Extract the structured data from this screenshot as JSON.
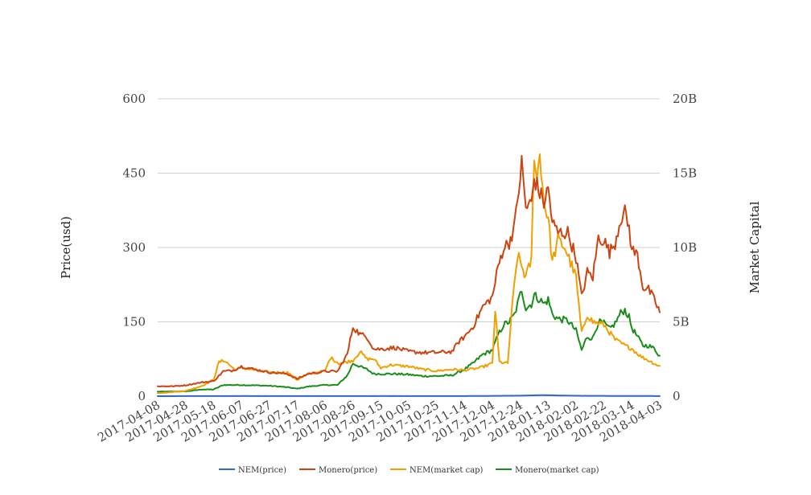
{
  "chart_data": {
    "type": "line",
    "title": "",
    "xlabel": "",
    "ylabel": "Price(usd)",
    "y2label": "Market Capital",
    "x_start": "2017-04-08",
    "x_end": "2018-04-03",
    "x_ticks": [
      "2017-04-08",
      "2017-04-28",
      "2017-05-18",
      "2017-06-07",
      "2017-06-27",
      "2017-07-17",
      "2017-08-06",
      "2017-08-26",
      "2017-09-15",
      "2017-10-05",
      "2017-10-25",
      "2017-11-14",
      "2017-12-04",
      "2017-12-24",
      "2018-01-13",
      "2018-02-02",
      "2018-02-22",
      "2018-03-14",
      "2018-04-03"
    ],
    "ylim": [
      0,
      600
    ],
    "y_ticks": [
      0,
      150,
      300,
      450,
      600
    ],
    "y_tick_labels": [
      "0",
      "150",
      "300",
      "450",
      "600"
    ],
    "y2lim": [
      0,
      20000000000
    ],
    "y2_ticks": [
      0,
      5000000000,
      10000000000,
      15000000000,
      20000000000
    ],
    "y2_tick_labels": [
      "0",
      "5B",
      "10B",
      "15B",
      "20B"
    ],
    "grid": true,
    "legend_position": "bottom",
    "series": [
      {
        "name": "NEM(price)",
        "axis": "left",
        "color": "#3366cc",
        "points": [
          [
            "2017-04-08",
            0.02
          ],
          [
            "2017-05-18",
            0.2
          ],
          [
            "2017-06-07",
            0.25
          ],
          [
            "2017-08-06",
            0.2
          ],
          [
            "2017-09-15",
            0.25
          ],
          [
            "2017-11-14",
            0.2
          ],
          [
            "2017-12-24",
            1.0
          ],
          [
            "2018-01-07",
            2.0
          ],
          [
            "2018-01-13",
            1.8
          ],
          [
            "2018-02-02",
            0.8
          ],
          [
            "2018-03-14",
            0.35
          ],
          [
            "2018-04-03",
            0.22
          ]
        ]
      },
      {
        "name": "Monero(price)",
        "axis": "left",
        "color": "#cc4411",
        "points": [
          [
            "2017-04-08",
            20
          ],
          [
            "2017-04-20",
            20
          ],
          [
            "2017-04-28",
            22
          ],
          [
            "2017-05-10",
            28
          ],
          [
            "2017-05-18",
            30
          ],
          [
            "2017-05-25",
            50
          ],
          [
            "2017-06-01",
            52
          ],
          [
            "2017-06-07",
            60
          ],
          [
            "2017-06-15",
            55
          ],
          [
            "2017-06-27",
            48
          ],
          [
            "2017-07-10",
            45
          ],
          [
            "2017-07-17",
            35
          ],
          [
            "2017-07-25",
            45
          ],
          [
            "2017-08-06",
            50
          ],
          [
            "2017-08-15",
            50
          ],
          [
            "2017-08-22",
            85
          ],
          [
            "2017-08-26",
            140
          ],
          [
            "2017-08-31",
            125
          ],
          [
            "2017-09-05",
            120
          ],
          [
            "2017-09-10",
            95
          ],
          [
            "2017-09-15",
            95
          ],
          [
            "2017-09-25",
            98
          ],
          [
            "2017-10-05",
            90
          ],
          [
            "2017-10-15",
            88
          ],
          [
            "2017-10-25",
            88
          ],
          [
            "2017-11-05",
            90
          ],
          [
            "2017-11-10",
            110
          ],
          [
            "2017-11-14",
            120
          ],
          [
            "2017-11-20",
            140
          ],
          [
            "2017-11-27",
            180
          ],
          [
            "2017-12-04",
            200
          ],
          [
            "2017-12-08",
            260
          ],
          [
            "2017-12-12",
            300
          ],
          [
            "2017-12-16",
            310
          ],
          [
            "2017-12-20",
            345
          ],
          [
            "2017-12-23",
            420
          ],
          [
            "2017-12-25",
            470
          ],
          [
            "2017-12-28",
            380
          ],
          [
            "2018-01-01",
            390
          ],
          [
            "2018-01-03",
            440
          ],
          [
            "2018-01-07",
            410
          ],
          [
            "2018-01-10",
            390
          ],
          [
            "2018-01-13",
            420
          ],
          [
            "2018-01-16",
            350
          ],
          [
            "2018-01-20",
            330
          ],
          [
            "2018-01-27",
            330
          ],
          [
            "2018-02-02",
            280
          ],
          [
            "2018-02-06",
            200
          ],
          [
            "2018-02-10",
            250
          ],
          [
            "2018-02-14",
            240
          ],
          [
            "2018-02-18",
            320
          ],
          [
            "2018-02-22",
            315
          ],
          [
            "2018-02-26",
            290
          ],
          [
            "2018-03-02",
            310
          ],
          [
            "2018-03-06",
            360
          ],
          [
            "2018-03-09",
            370
          ],
          [
            "2018-03-12",
            340
          ],
          [
            "2018-03-14",
            295
          ],
          [
            "2018-03-18",
            285
          ],
          [
            "2018-03-22",
            220
          ],
          [
            "2018-03-26",
            215
          ],
          [
            "2018-03-30",
            195
          ],
          [
            "2018-04-03",
            170
          ]
        ]
      },
      {
        "name": "NEM(market cap)",
        "axis": "right",
        "color": "#f0a000",
        "points": [
          [
            "2017-04-08",
            200000000.0
          ],
          [
            "2017-04-28",
            350000000.0
          ],
          [
            "2017-05-10",
            700000000.0
          ],
          [
            "2017-05-18",
            1100000000.0
          ],
          [
            "2017-05-22",
            2300000000.0
          ],
          [
            "2017-05-26",
            2400000000.0
          ],
          [
            "2017-06-02",
            1800000000.0
          ],
          [
            "2017-06-07",
            1900000000.0
          ],
          [
            "2017-06-27",
            1600000000.0
          ],
          [
            "2017-07-10",
            1600000000.0
          ],
          [
            "2017-07-17",
            1100000000.0
          ],
          [
            "2017-07-25",
            1500000000.0
          ],
          [
            "2017-08-06",
            1700000000.0
          ],
          [
            "2017-08-10",
            2600000000.0
          ],
          [
            "2017-08-16",
            2200000000.0
          ],
          [
            "2017-08-26",
            2400000000.0
          ],
          [
            "2017-08-31",
            3000000000.0
          ],
          [
            "2017-09-05",
            2500000000.0
          ],
          [
            "2017-09-10",
            2500000000.0
          ],
          [
            "2017-09-15",
            1900000000.0
          ],
          [
            "2017-09-22",
            2100000000.0
          ],
          [
            "2017-10-05",
            2000000000.0
          ],
          [
            "2017-10-15",
            1800000000.0
          ],
          [
            "2017-10-25",
            1700000000.0
          ],
          [
            "2017-11-05",
            1800000000.0
          ],
          [
            "2017-11-14",
            1750000000.0
          ],
          [
            "2017-11-25",
            1900000000.0
          ],
          [
            "2017-12-04",
            2200000000.0
          ],
          [
            "2017-12-06",
            5800000000.0
          ],
          [
            "2017-12-09",
            2300000000.0
          ],
          [
            "2017-12-15",
            2200000000.0
          ],
          [
            "2017-12-18",
            5800000000.0
          ],
          [
            "2017-12-22",
            9500000000.0
          ],
          [
            "2017-12-28",
            8000000000.0
          ],
          [
            "2018-01-01",
            9200000000.0
          ],
          [
            "2018-01-03",
            16500000000.0
          ],
          [
            "2018-01-05",
            14500000000.0
          ],
          [
            "2018-01-07",
            16400000000.0
          ],
          [
            "2018-01-10",
            13000000000.0
          ],
          [
            "2018-01-13",
            12000000000.0
          ],
          [
            "2018-01-16",
            9000000000.0
          ],
          [
            "2018-01-20",
            10500000000.0
          ],
          [
            "2018-01-25",
            10000000000.0
          ],
          [
            "2018-02-02",
            8000000000.0
          ],
          [
            "2018-02-06",
            4200000000.0
          ],
          [
            "2018-02-10",
            5500000000.0
          ],
          [
            "2018-02-14",
            5000000000.0
          ],
          [
            "2018-02-22",
            4800000000.0
          ],
          [
            "2018-03-02",
            3800000000.0
          ],
          [
            "2018-03-09",
            3400000000.0
          ],
          [
            "2018-03-14",
            3200000000.0
          ],
          [
            "2018-03-20",
            2700000000.0
          ],
          [
            "2018-03-26",
            2400000000.0
          ],
          [
            "2018-04-03",
            2000000000.0
          ]
        ]
      },
      {
        "name": "Monero(market cap)",
        "axis": "right",
        "color": "#1a8c1a",
        "points": [
          [
            "2017-04-08",
            300000000.0
          ],
          [
            "2017-04-28",
            320000000.0
          ],
          [
            "2017-05-10",
            450000000.0
          ],
          [
            "2017-05-18",
            450000000.0
          ],
          [
            "2017-05-25",
            750000000.0
          ],
          [
            "2017-06-07",
            750000000.0
          ],
          [
            "2017-06-27",
            700000000.0
          ],
          [
            "2017-07-10",
            600000000.0
          ],
          [
            "2017-07-17",
            500000000.0
          ],
          [
            "2017-07-25",
            650000000.0
          ],
          [
            "2017-08-06",
            750000000.0
          ],
          [
            "2017-08-15",
            750000000.0
          ],
          [
            "2017-08-22",
            1400000000.0
          ],
          [
            "2017-08-26",
            2200000000.0
          ],
          [
            "2017-08-31",
            2000000000.0
          ],
          [
            "2017-09-05",
            1800000000.0
          ],
          [
            "2017-09-10",
            1500000000.0
          ],
          [
            "2017-09-15",
            1500000000.0
          ],
          [
            "2017-09-25",
            1500000000.0
          ],
          [
            "2017-10-05",
            1450000000.0
          ],
          [
            "2017-10-15",
            1350000000.0
          ],
          [
            "2017-10-25",
            1350000000.0
          ],
          [
            "2017-11-05",
            1400000000.0
          ],
          [
            "2017-11-14",
            1800000000.0
          ],
          [
            "2017-11-20",
            2200000000.0
          ],
          [
            "2017-11-27",
            2800000000.0
          ],
          [
            "2017-12-04",
            3100000000.0
          ],
          [
            "2017-12-08",
            4100000000.0
          ],
          [
            "2017-12-12",
            4800000000.0
          ],
          [
            "2017-12-16",
            5000000000.0
          ],
          [
            "2017-12-20",
            5500000000.0
          ],
          [
            "2017-12-23",
            6500000000.0
          ],
          [
            "2017-12-25",
            7200000000.0
          ],
          [
            "2017-12-28",
            5900000000.0
          ],
          [
            "2018-01-01",
            6200000000.0
          ],
          [
            "2018-01-03",
            6800000000.0
          ],
          [
            "2018-01-07",
            6500000000.0
          ],
          [
            "2018-01-10",
            6200000000.0
          ],
          [
            "2018-01-13",
            6500000000.0
          ],
          [
            "2018-01-16",
            5500000000.0
          ],
          [
            "2018-01-20",
            5200000000.0
          ],
          [
            "2018-01-27",
            5100000000.0
          ],
          [
            "2018-02-02",
            4400000000.0
          ],
          [
            "2018-02-06",
            3100000000.0
          ],
          [
            "2018-02-10",
            4000000000.0
          ],
          [
            "2018-02-14",
            3900000000.0
          ],
          [
            "2018-02-18",
            5000000000.0
          ],
          [
            "2018-02-22",
            4900000000.0
          ],
          [
            "2018-02-26",
            4500000000.0
          ],
          [
            "2018-03-02",
            4900000000.0
          ],
          [
            "2018-03-06",
            5600000000.0
          ],
          [
            "2018-03-09",
            5800000000.0
          ],
          [
            "2018-03-12",
            5300000000.0
          ],
          [
            "2018-03-14",
            4600000000.0
          ],
          [
            "2018-03-18",
            4000000000.0
          ],
          [
            "2018-03-22",
            3400000000.0
          ],
          [
            "2018-03-26",
            3400000000.0
          ],
          [
            "2018-03-30",
            3200000000.0
          ],
          [
            "2018-04-03",
            2700000000.0
          ]
        ]
      }
    ]
  }
}
